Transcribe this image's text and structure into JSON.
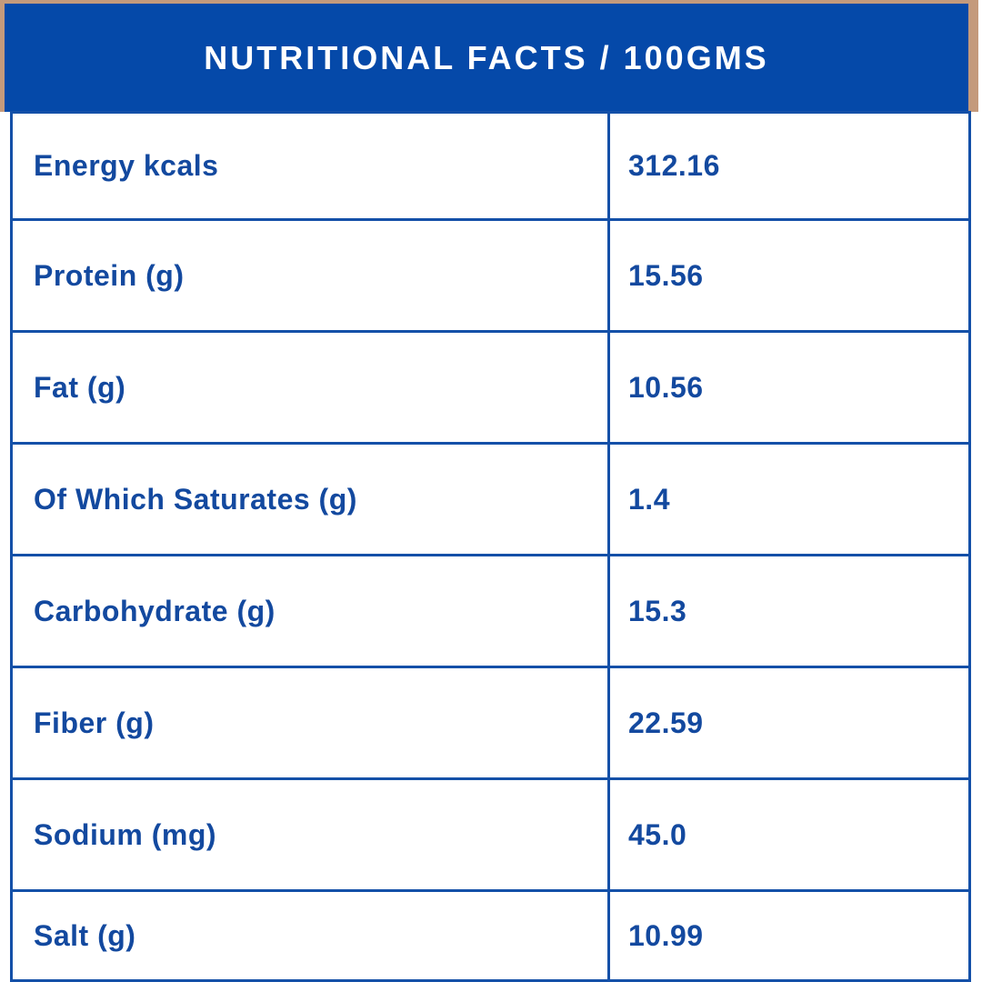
{
  "colors": {
    "frame_tan": "#c49a7c",
    "header_blue": "#0549a9",
    "border_blue": "#1450a8",
    "text_blue": "#13499f",
    "header_text": "#ffffff",
    "cell_bg": "#ffffff"
  },
  "header": {
    "title": "NUTRITIONAL FACTS / 100GMS"
  },
  "table": {
    "rows": [
      {
        "label": "Energy kcals",
        "value": "312.16"
      },
      {
        "label": "Protein (g)",
        "value": "15.56"
      },
      {
        "label": "Fat (g)",
        "value": "10.56"
      },
      {
        "label": "Of Which Saturates (g)",
        "value": "1.4"
      },
      {
        "label": "Carbohydrate (g)",
        "value": "15.3"
      },
      {
        "label": "Fiber (g)",
        "value": "22.59"
      },
      {
        "label": "Sodium (mg)",
        "value": "45.0"
      },
      {
        "label": "Salt (g)",
        "value": "10.99"
      }
    ]
  }
}
